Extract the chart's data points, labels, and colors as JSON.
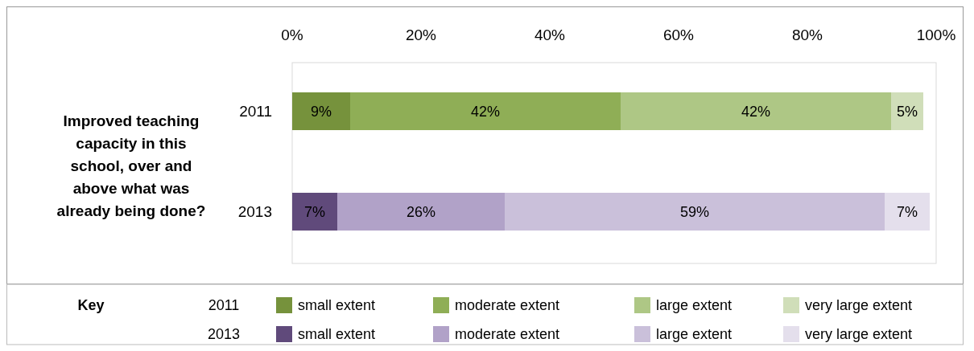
{
  "chart_data": {
    "type": "bar",
    "orientation": "horizontal",
    "stacked": true,
    "ylabel": "Improved teaching capacity in this school, over and above what was already being done?",
    "categories": [
      "2011",
      "2013"
    ],
    "series": [
      {
        "name": "small extent",
        "colors": [
          "#76923c",
          "#604a7b"
        ],
        "values": [
          9,
          7
        ],
        "value_labels": [
          "9%",
          "7%"
        ]
      },
      {
        "name": "moderate extent",
        "colors": [
          "#8fae56",
          "#b1a2c8"
        ],
        "values": [
          42,
          26
        ],
        "value_labels": [
          "42%",
          "26%"
        ]
      },
      {
        "name": "large extent",
        "colors": [
          "#aec785",
          "#cac0da"
        ],
        "values": [
          42,
          59
        ],
        "value_labels": [
          "42%",
          "59%"
        ]
      },
      {
        "name": "very large extent",
        "colors": [
          "#d0deb9",
          "#e4dfec"
        ],
        "values": [
          5,
          7
        ],
        "value_labels": [
          "5%",
          "7%"
        ]
      }
    ],
    "xlim": [
      0,
      100
    ],
    "xticks": [
      {
        "value": 0,
        "label": "0%"
      },
      {
        "value": 20,
        "label": "20%"
      },
      {
        "value": 40,
        "label": "40%"
      },
      {
        "value": 60,
        "label": "60%"
      },
      {
        "value": 80,
        "label": "80%"
      },
      {
        "value": 100,
        "label": "100%"
      }
    ],
    "legend": "bottom",
    "legend_title": "Key"
  }
}
